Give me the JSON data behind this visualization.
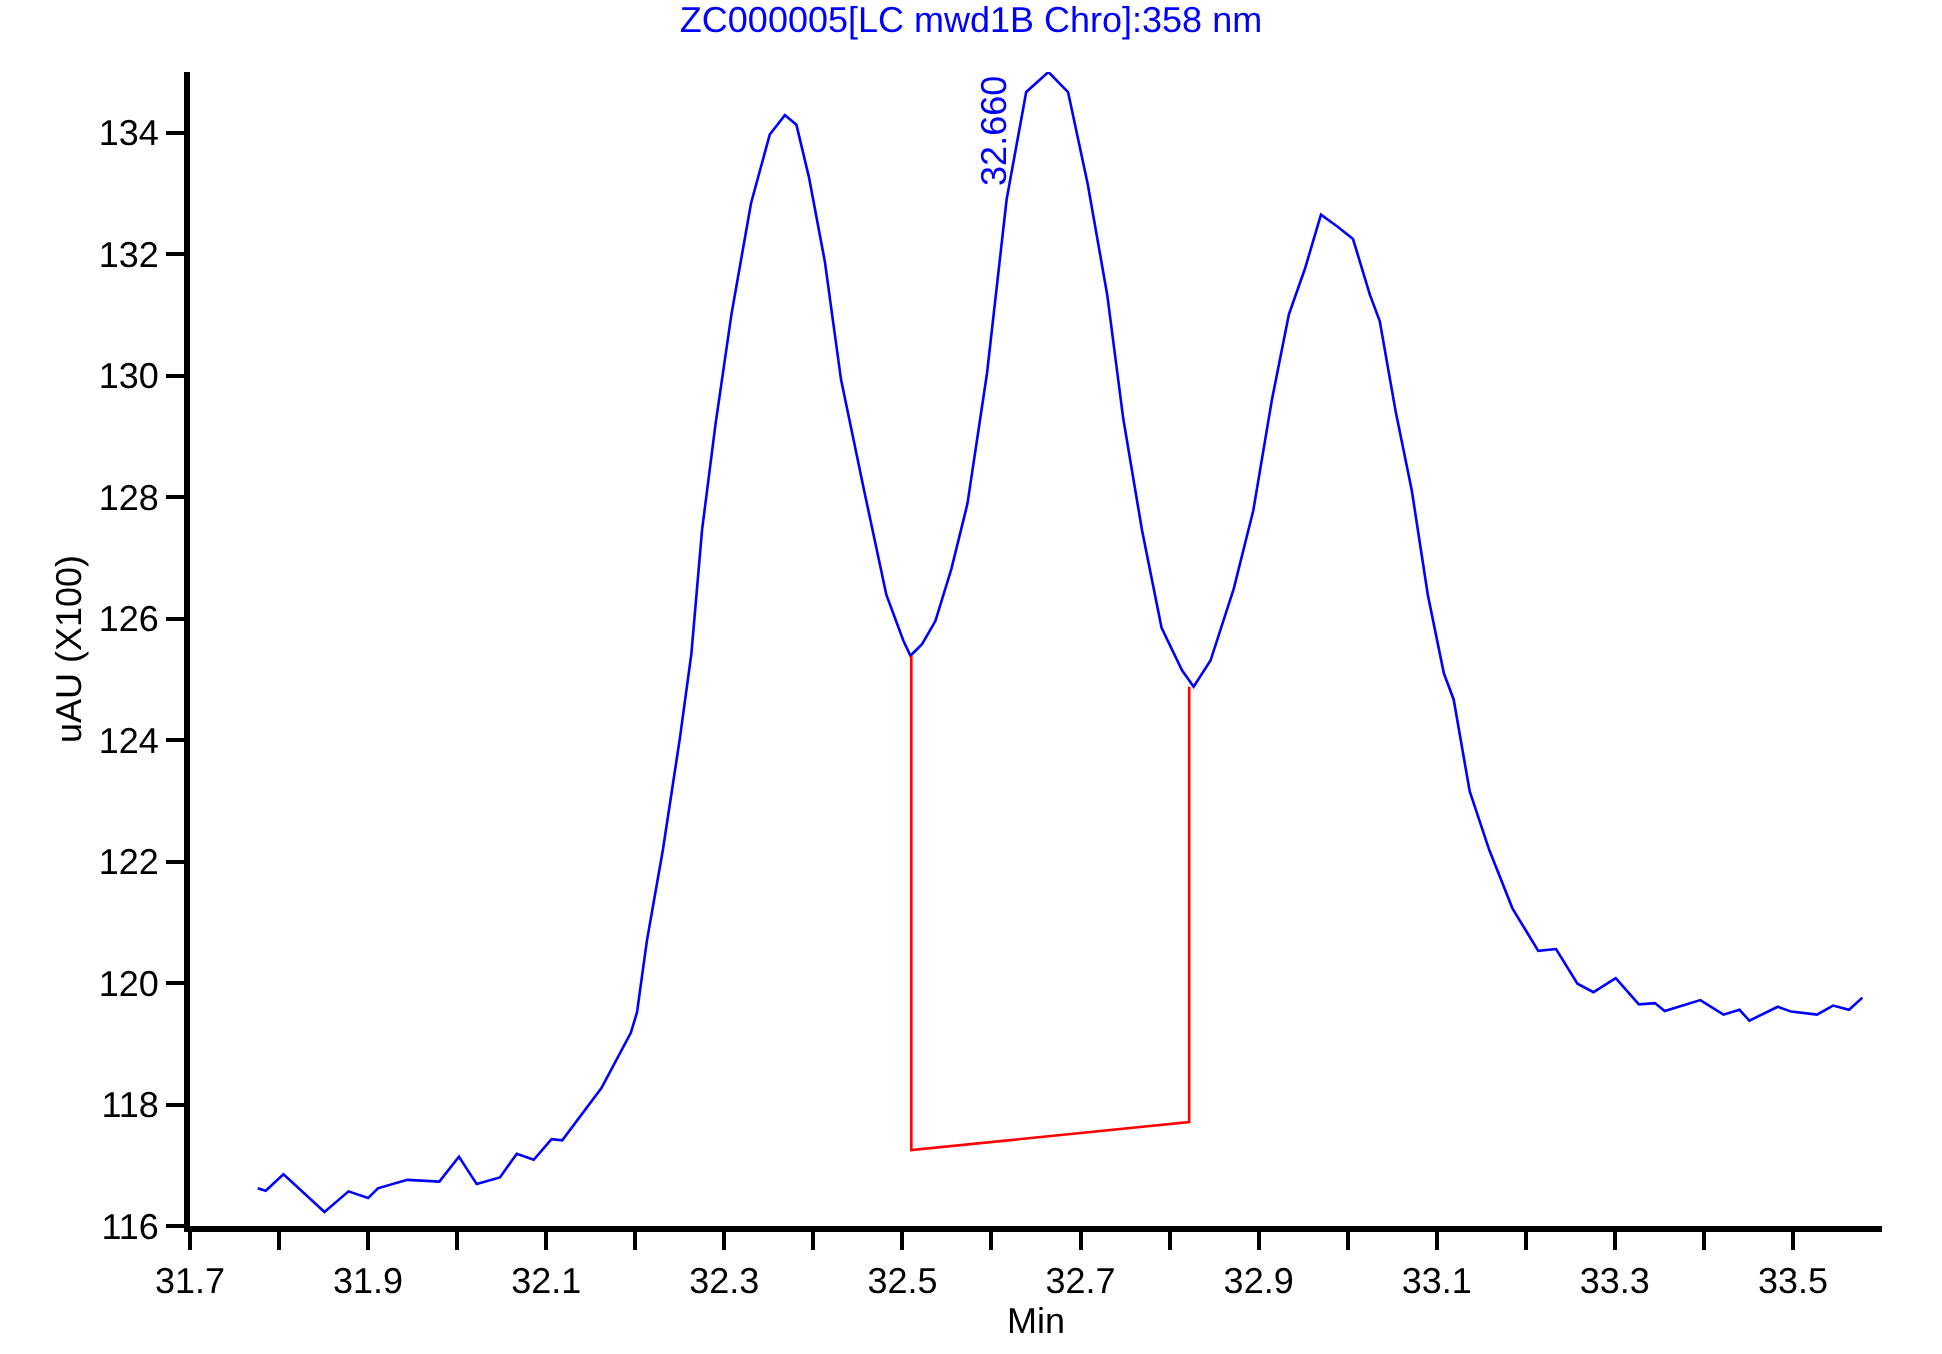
{
  "chart_data": {
    "type": "line",
    "title": "ZC000005[LC mwd1B Chro]:358 nm",
    "xlabel": "Min",
    "ylabel": "uAU (X100)",
    "xlim": [
      31.7,
      33.6
    ],
    "xticks": [
      31.7,
      {
        "value": 31.8,
        "label": null
      },
      31.9,
      {
        "value": 32.0,
        "label": null
      },
      32.1,
      {
        "value": 32.2,
        "label": null
      },
      32.3,
      {
        "value": 32.4,
        "label": null
      },
      32.5,
      {
        "value": 32.6,
        "label": null
      },
      32.7,
      {
        "value": 32.8,
        "label": null
      },
      32.9,
      {
        "value": 33.0,
        "label": null
      },
      33.1,
      {
        "value": 33.2,
        "label": null
      },
      33.3,
      {
        "value": 33.4,
        "label": null
      },
      33.5
    ],
    "ylim": [
      116,
      135
    ],
    "yticks": [
      116,
      118,
      120,
      122,
      124,
      126,
      128,
      130,
      132,
      134
    ],
    "marker": "none",
    "line_style": "solid",
    "series": [
      {
        "color": "#0000ff",
        "x": [
          31.776,
          31.785,
          31.805,
          31.851,
          31.878,
          31.9,
          31.911,
          31.944,
          31.98,
          32.002,
          32.022,
          32.048,
          32.067,
          32.086,
          32.106,
          32.118,
          32.162,
          32.195,
          32.202,
          32.213,
          32.231,
          32.25,
          32.263,
          32.275,
          32.29,
          32.308,
          32.33,
          32.351,
          32.368,
          32.381,
          32.395,
          32.413,
          32.431,
          32.457,
          32.482,
          32.501,
          32.509,
          32.522,
          32.537,
          32.555,
          32.573,
          32.595,
          32.617,
          32.639,
          32.664,
          32.686,
          32.708,
          32.73,
          32.748,
          32.769,
          32.791,
          32.814,
          32.827,
          32.846,
          32.872,
          32.894,
          32.915,
          32.934,
          32.952,
          32.97,
          32.988,
          33.006,
          33.025,
          33.036,
          33.054,
          33.072,
          33.09,
          33.108,
          33.119,
          33.137,
          33.159,
          33.185,
          33.214,
          33.234,
          33.258,
          33.276,
          33.301,
          33.327,
          33.345,
          33.356,
          33.396,
          33.422,
          33.44,
          33.451,
          33.483,
          33.498,
          33.527,
          33.545,
          33.563,
          33.578
        ],
        "values": [
          116.62,
          116.58,
          116.85,
          116.23,
          116.57,
          116.46,
          116.62,
          116.76,
          116.73,
          117.14,
          116.69,
          116.8,
          117.19,
          117.09,
          117.43,
          117.41,
          118.27,
          119.18,
          119.52,
          120.69,
          122.19,
          124.02,
          125.42,
          127.46,
          129.19,
          131.01,
          132.84,
          133.97,
          134.29,
          134.13,
          133.27,
          131.87,
          129.94,
          128.11,
          126.39,
          125.64,
          125.39,
          125.58,
          125.96,
          126.82,
          127.89,
          130.04,
          132.9,
          134.67,
          135.0,
          134.67,
          133.16,
          131.33,
          129.29,
          127.46,
          125.85,
          125.15,
          124.88,
          125.31,
          126.49,
          127.78,
          129.61,
          131.01,
          131.76,
          132.65,
          132.46,
          132.25,
          131.33,
          130.9,
          129.4,
          128.11,
          126.39,
          125.1,
          124.67,
          123.16,
          122.19,
          121.23,
          120.53,
          120.56,
          119.99,
          119.85,
          120.08,
          119.65,
          119.67,
          119.54,
          119.72,
          119.48,
          119.56,
          119.38,
          119.61,
          119.53,
          119.48,
          119.63,
          119.56,
          119.76
        ]
      },
      {
        "color": "#ff0000",
        "x": [
          32.51,
          32.51,
          32.822,
          32.822
        ],
        "values": [
          125.39,
          117.25,
          117.71,
          124.88
        ]
      }
    ],
    "annotations": [
      {
        "text": "32.660",
        "x": 32.66,
        "y": 135.0
      }
    ]
  }
}
